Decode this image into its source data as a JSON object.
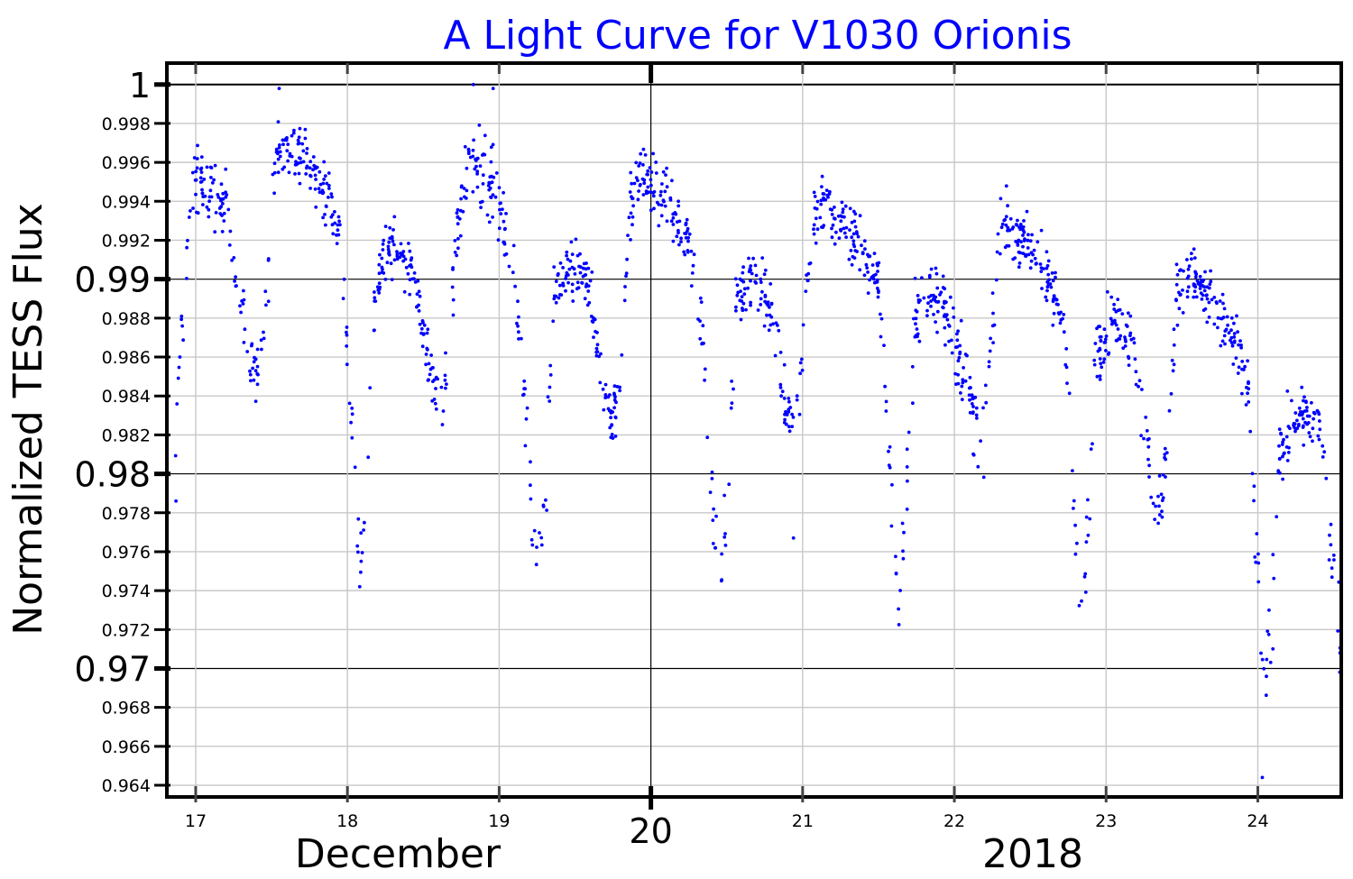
{
  "chart_data": {
    "type": "scatter",
    "title": "A Light Curve for V1030 Orionis",
    "xlabel_parts": [
      "December",
      "2018"
    ],
    "ylabel": "Normalized TESS Flux",
    "xlim": [
      16.81,
      24.55
    ],
    "ylim": [
      0.9634,
      1.0011
    ],
    "grid": true,
    "x_ticks": [
      {
        "value": 17,
        "label": "17",
        "major": false
      },
      {
        "value": 18,
        "label": "18",
        "major": false
      },
      {
        "value": 19,
        "label": "19",
        "major": false
      },
      {
        "value": 20,
        "label": "20",
        "major": true
      },
      {
        "value": 21,
        "label": "21",
        "major": false
      },
      {
        "value": 22,
        "label": "22",
        "major": false
      },
      {
        "value": 23,
        "label": "23",
        "major": false
      },
      {
        "value": 24,
        "label": "24",
        "major": false
      }
    ],
    "y_ticks": [
      {
        "value": 1.0,
        "label": "1",
        "major": true
      },
      {
        "value": 0.998,
        "label": "0.998",
        "major": false
      },
      {
        "value": 0.996,
        "label": "0.996",
        "major": false
      },
      {
        "value": 0.994,
        "label": "0.994",
        "major": false
      },
      {
        "value": 0.992,
        "label": "0.992",
        "major": false
      },
      {
        "value": 0.99,
        "label": "0.99",
        "major": true
      },
      {
        "value": 0.988,
        "label": "0.988",
        "major": false
      },
      {
        "value": 0.986,
        "label": "0.986",
        "major": false
      },
      {
        "value": 0.984,
        "label": "0.984",
        "major": false
      },
      {
        "value": 0.982,
        "label": "0.982",
        "major": false
      },
      {
        "value": 0.98,
        "label": "0.98",
        "major": true
      },
      {
        "value": 0.978,
        "label": "0.978",
        "major": false
      },
      {
        "value": 0.976,
        "label": "0.976",
        "major": false
      },
      {
        "value": 0.974,
        "label": "0.974",
        "major": false
      },
      {
        "value": 0.972,
        "label": "0.972",
        "major": false
      },
      {
        "value": 0.97,
        "label": "0.97",
        "major": true
      },
      {
        "value": 0.968,
        "label": "0.968",
        "major": false
      },
      {
        "value": 0.966,
        "label": "0.966",
        "major": false
      },
      {
        "value": 0.964,
        "label": "0.964",
        "major": false
      }
    ],
    "series": [
      {
        "name": "TESS flux",
        "color": "#0000ff",
        "description": "Light curve traced as (day, median flux, scatter) knots; individual observations scatter around this trend",
        "knots": [
          [
            16.86,
            0.98,
            0.001
          ],
          [
            16.93,
            0.9905,
            0.0012
          ],
          [
            16.97,
            0.995,
            0.001
          ],
          [
            17.1,
            0.9945,
            0.001
          ],
          [
            17.2,
            0.994,
            0.0008
          ],
          [
            17.28,
            0.9895,
            0.0008
          ],
          [
            17.36,
            0.9855,
            0.0009
          ],
          [
            17.42,
            0.9855,
            0.001
          ],
          [
            17.48,
            0.99,
            0.0012
          ],
          [
            17.54,
            0.997,
            0.0008
          ],
          [
            17.7,
            0.9965,
            0.0008
          ],
          [
            17.85,
            0.9945,
            0.0008
          ],
          [
            17.95,
            0.9925,
            0.0008
          ],
          [
            18.02,
            0.984,
            0.0012
          ],
          [
            18.08,
            0.9755,
            0.001
          ],
          [
            18.13,
            0.979,
            0.0012
          ],
          [
            18.18,
            0.989,
            0.001
          ],
          [
            18.25,
            0.9915,
            0.0008
          ],
          [
            18.42,
            0.991,
            0.0008
          ],
          [
            18.5,
            0.9875,
            0.0008
          ],
          [
            18.6,
            0.983,
            0.001
          ],
          [
            18.66,
            0.986,
            0.001
          ],
          [
            18.72,
            0.9925,
            0.001
          ],
          [
            18.8,
            0.996,
            0.0012
          ],
          [
            18.95,
            0.995,
            0.0012
          ],
          [
            19.05,
            0.992,
            0.001
          ],
          [
            19.13,
            0.988,
            0.0012
          ],
          [
            19.2,
            0.979,
            0.0012
          ],
          [
            19.26,
            0.975,
            0.0008
          ],
          [
            19.31,
            0.979,
            0.0012
          ],
          [
            19.36,
            0.989,
            0.0012
          ],
          [
            19.45,
            0.9905,
            0.0008
          ],
          [
            19.58,
            0.99,
            0.0008
          ],
          [
            19.66,
            0.986,
            0.001
          ],
          [
            19.75,
            0.9825,
            0.0008
          ],
          [
            19.8,
            0.985,
            0.001
          ],
          [
            19.85,
            0.993,
            0.001
          ],
          [
            19.92,
            0.9955,
            0.0008
          ],
          [
            20.1,
            0.994,
            0.0008
          ],
          [
            20.25,
            0.992,
            0.0008
          ],
          [
            20.33,
            0.988,
            0.001
          ],
          [
            20.4,
            0.979,
            0.0012
          ],
          [
            20.46,
            0.9745,
            0.001
          ],
          [
            20.51,
            0.98,
            0.0012
          ],
          [
            20.56,
            0.989,
            0.0008
          ],
          [
            20.7,
            0.99,
            0.0008
          ],
          [
            20.8,
            0.9885,
            0.0008
          ],
          [
            20.88,
            0.984,
            0.001
          ],
          [
            20.95,
            0.982,
            0.001
          ],
          [
            21.0,
            0.987,
            0.0012
          ],
          [
            21.06,
            0.993,
            0.001
          ],
          [
            21.15,
            0.994,
            0.001
          ],
          [
            21.35,
            0.992,
            0.001
          ],
          [
            21.5,
            0.99,
            0.0008
          ],
          [
            21.57,
            0.981,
            0.0012
          ],
          [
            21.63,
            0.973,
            0.001
          ],
          [
            21.68,
            0.978,
            0.0012
          ],
          [
            21.74,
            0.988,
            0.001
          ],
          [
            21.9,
            0.9895,
            0.0012
          ],
          [
            22.0,
            0.987,
            0.0012
          ],
          [
            22.1,
            0.984,
            0.0012
          ],
          [
            22.18,
            0.981,
            0.001
          ],
          [
            22.24,
            0.986,
            0.001
          ],
          [
            22.3,
            0.993,
            0.0008
          ],
          [
            22.45,
            0.992,
            0.0008
          ],
          [
            22.62,
            0.99,
            0.0008
          ],
          [
            22.72,
            0.988,
            0.0008
          ],
          [
            22.78,
            0.979,
            0.0012
          ],
          [
            22.83,
            0.9725,
            0.001
          ],
          [
            22.88,
            0.977,
            0.0012
          ],
          [
            22.93,
            0.9865,
            0.001
          ],
          [
            23.05,
            0.988,
            0.0008
          ],
          [
            23.17,
            0.987,
            0.0008
          ],
          [
            23.25,
            0.983,
            0.001
          ],
          [
            23.34,
            0.978,
            0.001
          ],
          [
            23.4,
            0.98,
            0.0012
          ],
          [
            23.46,
            0.989,
            0.001
          ],
          [
            23.55,
            0.9905,
            0.0008
          ],
          [
            23.75,
            0.988,
            0.001
          ],
          [
            23.88,
            0.986,
            0.0008
          ],
          [
            23.94,
            0.984,
            0.001
          ],
          [
            23.99,
            0.976,
            0.0012
          ],
          [
            24.04,
            0.969,
            0.001
          ],
          [
            24.09,
            0.972,
            0.0012
          ],
          [
            24.14,
            0.981,
            0.001
          ],
          [
            24.25,
            0.983,
            0.0008
          ],
          [
            24.4,
            0.9825,
            0.0008
          ],
          [
            24.45,
            0.979,
            0.001
          ],
          [
            24.5,
            0.975,
            0.001
          ],
          [
            24.55,
            0.97,
            0.0012
          ]
        ],
        "notable_points": [
          [
            17.55,
            0.9998
          ],
          [
            18.83,
            1.0
          ],
          [
            18.96,
            0.9998
          ],
          [
            24.03,
            0.9644
          ],
          [
            20.94,
            0.9767
          ],
          [
            16.87,
            0.9786
          ],
          [
            24.55,
            0.9672
          ]
        ]
      }
    ]
  }
}
